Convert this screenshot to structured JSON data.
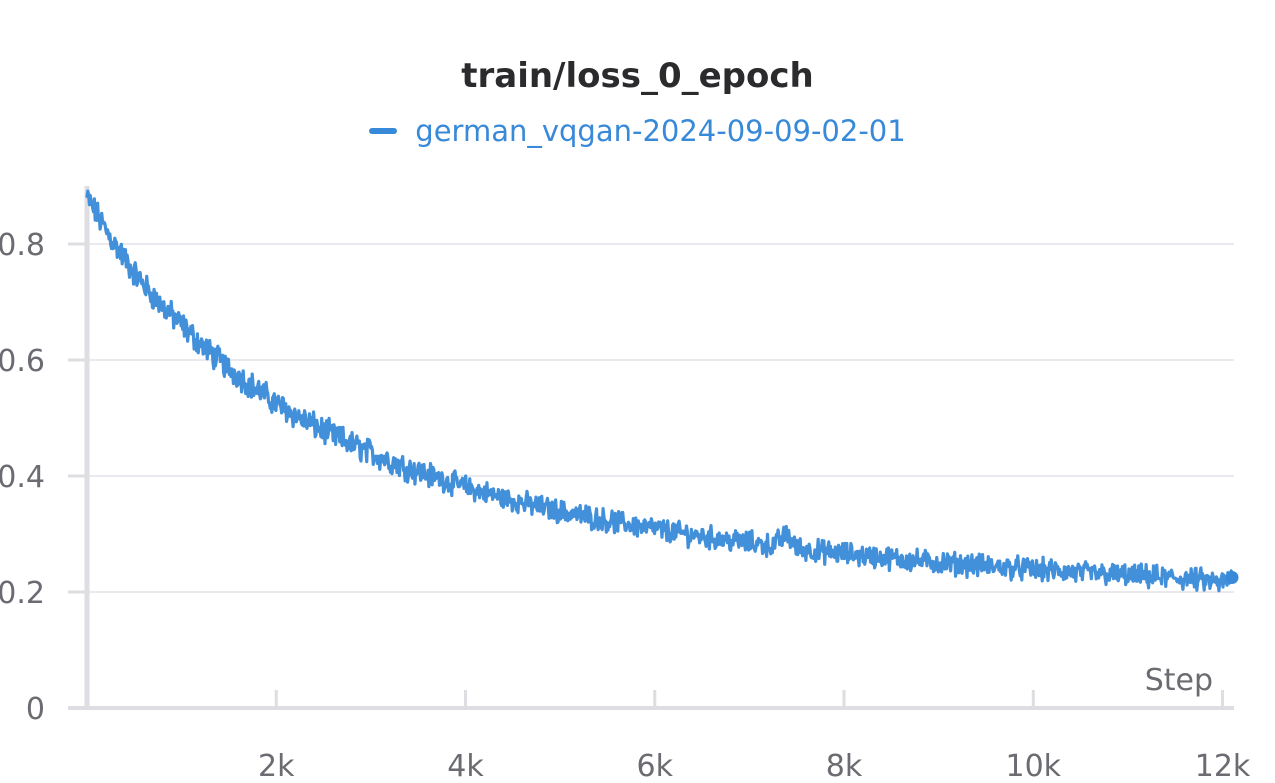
{
  "colors": {
    "series": "#3889d8",
    "grid": "#e4e4e8",
    "axis": "#dddde2",
    "tick_text": "#6b6b72",
    "title": "#2b2b2e"
  },
  "chart_data": {
    "type": "line",
    "title": "train/loss_0_epoch",
    "xlabel": "Step",
    "ylabel": "",
    "legend_position": "top-center",
    "grid": true,
    "xlim": [
      0,
      12100
    ],
    "ylim": [
      0,
      0.9
    ],
    "x_ticks": [
      2000,
      4000,
      6000,
      8000,
      10000,
      12000
    ],
    "x_tick_labels": [
      "2k",
      "4k",
      "6k",
      "8k",
      "10k",
      "12k"
    ],
    "y_ticks": [
      0,
      0.2,
      0.4,
      0.6,
      0.8
    ],
    "y_tick_labels": [
      "0",
      "0.2",
      "0.4",
      "0.6",
      "0.8"
    ],
    "series": [
      {
        "name": "german_vqgan-2024-09-09-02-01",
        "color": "#3889d8",
        "x": [
          0,
          250,
          500,
          750,
          1000,
          1250,
          1500,
          1750,
          2000,
          2250,
          2500,
          2750,
          3000,
          3250,
          3500,
          3750,
          4000,
          4250,
          4500,
          4750,
          5000,
          5250,
          5500,
          5750,
          6000,
          6250,
          6500,
          6750,
          7000,
          7250,
          7400,
          7500,
          7750,
          8000,
          8250,
          8500,
          8750,
          9000,
          9250,
          9500,
          9750,
          10000,
          10250,
          10500,
          10750,
          11000,
          11250,
          11500,
          11750,
          12000,
          12100
        ],
        "y": [
          0.88,
          0.81,
          0.75,
          0.7,
          0.66,
          0.62,
          0.585,
          0.555,
          0.525,
          0.5,
          0.478,
          0.458,
          0.44,
          0.423,
          0.408,
          0.394,
          0.381,
          0.369,
          0.358,
          0.348,
          0.339,
          0.331,
          0.323,
          0.316,
          0.309,
          0.302,
          0.296,
          0.29,
          0.285,
          0.28,
          0.3,
          0.275,
          0.27,
          0.266,
          0.262,
          0.258,
          0.254,
          0.251,
          0.248,
          0.245,
          0.242,
          0.239,
          0.236,
          0.233,
          0.231,
          0.228,
          0.226,
          0.224,
          0.221,
          0.215,
          0.225
        ]
      }
    ]
  }
}
